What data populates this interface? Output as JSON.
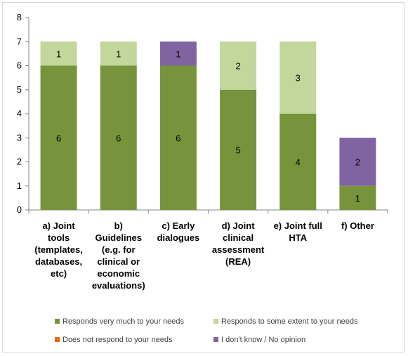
{
  "chart_data": {
    "type": "bar",
    "stacked": true,
    "categories": [
      [
        "a) Joint",
        "tools",
        "(templates,",
        "databases,",
        "etc)"
      ],
      [
        "b)",
        "Guidelines",
        "(e.g. for",
        "clinical or",
        "economic",
        "evaluations)"
      ],
      [
        "c) Early",
        "dialogues"
      ],
      [
        "d) Joint",
        "clinical",
        "assessment",
        "(REA)"
      ],
      [
        "e) Joint full",
        "HTA"
      ],
      [
        "f) Other"
      ]
    ],
    "series": [
      {
        "name": "Responds very much to your needs",
        "color": "#77933c",
        "values": [
          6,
          6,
          6,
          5,
          4,
          1
        ]
      },
      {
        "name": "Responds to some extent to your needs",
        "color": "#c3d69b",
        "values": [
          1,
          1,
          0,
          2,
          3,
          0
        ]
      },
      {
        "name": "Does not respond to your needs",
        "color": "#e46c0a",
        "values": [
          0,
          0,
          0,
          0,
          0,
          0
        ]
      },
      {
        "name": "I don't know / No opinion",
        "color": "#8064a2",
        "values": [
          0,
          0,
          1,
          0,
          0,
          2
        ]
      }
    ],
    "yticks": [
      "0",
      "1",
      "2",
      "3",
      "4",
      "5",
      "6",
      "7",
      "8"
    ],
    "ylim": [
      0,
      8
    ],
    "grid": false,
    "legend_position": "bottom",
    "title": "",
    "xlabel": "",
    "ylabel": ""
  }
}
